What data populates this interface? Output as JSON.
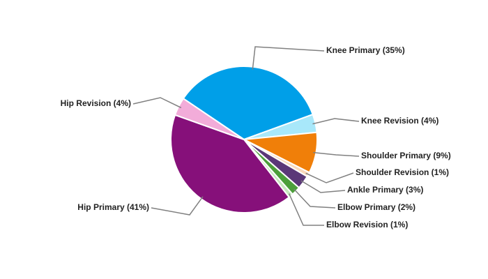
{
  "chart_data": {
    "type": "pie",
    "value_labels": [
      "Knee Primary (35%)",
      "Knee Revision (4%)",
      "Shoulder Primary (9%)",
      "Shoulder Revision (1%)",
      "Ankle Primary (3%)",
      "Elbow Primary (2%)",
      "Elbow Revision (1%)",
      "Hip Primary (41%)",
      "Hip Revision (4%)"
    ],
    "values": [
      35,
      4,
      9,
      1,
      3,
      2,
      1,
      41,
      4
    ],
    "colors": [
      "#009fe8",
      "#a8e8fa",
      "#f07f09",
      "#f9d9bb",
      "#5b3878",
      "#4c9f3a",
      "#c6e8bd",
      "#86107a",
      "#f2acd9"
    ]
  }
}
